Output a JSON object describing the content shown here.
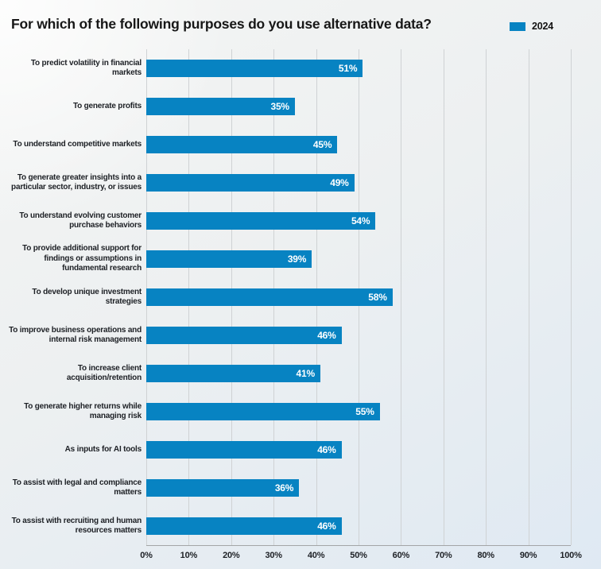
{
  "header": {
    "title": "For which of the following purposes do you use alternative data?",
    "legend": {
      "label": "2024",
      "color": "#0783c2"
    }
  },
  "chart_data": {
    "type": "bar",
    "orientation": "horizontal",
    "title": "For which of the following purposes do you use alternative data?",
    "legend_entries": [
      "2024"
    ],
    "legend_position": "top-right",
    "categories": [
      "To predict volatility in financial markets",
      "To generate profits",
      "To understand competitive markets",
      "To generate greater insights into a particular sector, industry, or issues",
      "To understand evolving customer purchase behaviors",
      "To provide additional support for findings or assumptions in fundamental research",
      "To develop unique investment strategies",
      "To improve business operations and internal risk management",
      "To increase client acquisition/retention",
      "To generate higher returns while managing risk",
      "As inputs for AI tools",
      "To assist with legal and compliance matters",
      "To assist with recruiting and human resources matters"
    ],
    "series": [
      {
        "name": "2024",
        "values": [
          51,
          35,
          45,
          49,
          54,
          39,
          58,
          46,
          41,
          55,
          46,
          36,
          46
        ]
      }
    ],
    "value_labels": [
      "51%",
      "35%",
      "45%",
      "49%",
      "54%",
      "39%",
      "58%",
      "46%",
      "41%",
      "55%",
      "46%",
      "36%",
      "46%"
    ],
    "x_ticks": [
      "0%",
      "10%",
      "20%",
      "30%",
      "40%",
      "50%",
      "60%",
      "70%",
      "80%",
      "90%",
      "100%"
    ],
    "xlim": [
      0,
      100
    ],
    "grid": "vertical",
    "bar_color": "#0783c2",
    "value_label_color": "#ffffff",
    "xlabel": "",
    "ylabel": ""
  }
}
